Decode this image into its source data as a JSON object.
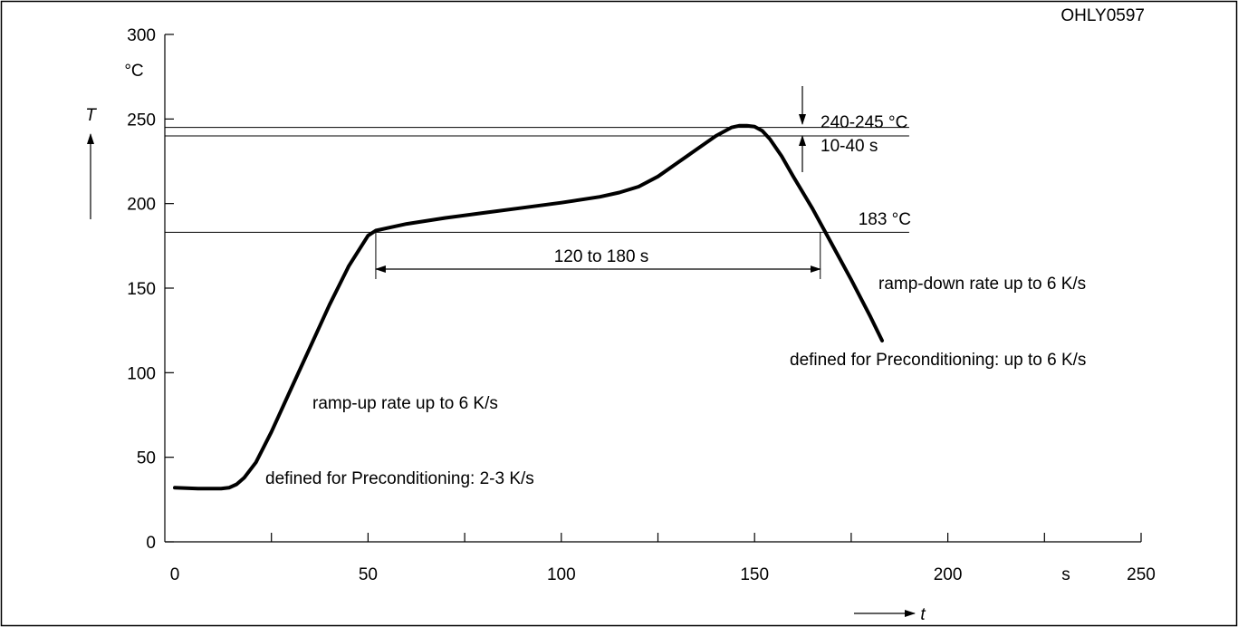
{
  "chart_data": {
    "type": "line",
    "figure_id": "OHLY0597",
    "ylabel": "T",
    "yunit": "°C",
    "xlabel": "t",
    "xunit": "s",
    "xlim": [
      0,
      250
    ],
    "ylim": [
      0,
      300
    ],
    "x_ticks": [
      0,
      50,
      100,
      150,
      200,
      250
    ],
    "x_tick_labels": [
      "0",
      "50",
      "100",
      "150",
      "200",
      "250"
    ],
    "x_minor_ticks": [
      25,
      75,
      125,
      175,
      225
    ],
    "y_ticks": [
      0,
      50,
      100,
      150,
      200,
      250,
      300
    ],
    "y_tick_labels": [
      "0",
      "50",
      "100",
      "150",
      "200",
      "250",
      "300"
    ],
    "grid": false,
    "series": [
      {
        "x": [
          0,
          6,
          12,
          14,
          16,
          18,
          21,
          25,
          30,
          35,
          40,
          45,
          50,
          52,
          55,
          60,
          70,
          80,
          90,
          100,
          110,
          115,
          120,
          125,
          130,
          135,
          140,
          144,
          146,
          148,
          150,
          152,
          154,
          157,
          160,
          165,
          170,
          175,
          180,
          183
        ],
        "y": [
          32,
          31.5,
          31.5,
          32,
          34,
          38,
          47,
          65,
          90,
          115,
          140,
          163,
          181,
          184,
          185.5,
          188,
          191.5,
          194.5,
          197.5,
          200.5,
          204,
          206.5,
          210,
          216,
          224,
          232,
          240,
          245,
          246,
          246,
          245.5,
          243,
          238,
          228,
          216,
          197,
          176,
          155,
          133,
          119
        ]
      }
    ],
    "reference_lines": [
      {
        "y": 245,
        "x_end": 190
      },
      {
        "y": 240,
        "x_end": 190
      },
      {
        "y": 183,
        "x_end": 190
      }
    ],
    "annotations": {
      "peak_temp": "240-245 °C",
      "peak_time": "10-40 s",
      "liquidus": "183 °C",
      "duration": "120 to 180 s",
      "duration_x_start": 52,
      "duration_x_end": 167,
      "ramp_up": "ramp-up rate up to 6 K/s",
      "ramp_up_precond": "defined for Preconditioning: 2-3 K/s",
      "ramp_down": "ramp-down rate up to 6 K/s",
      "ramp_down_precond": "defined for Preconditioning: up to 6 K/s"
    }
  }
}
